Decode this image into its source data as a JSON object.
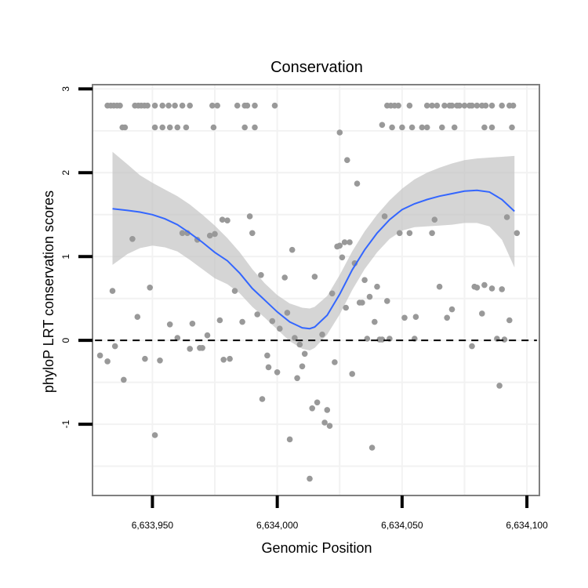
{
  "chart_data": {
    "type": "scatter",
    "title": "Conservation",
    "xlabel": "Genomic Position",
    "ylabel": "phyloP LRT conservation scores",
    "xlim": [
      6633926,
      6634105
    ],
    "ylim": [
      -1.85,
      3.05
    ],
    "x_ticks": [
      6633950,
      6634000,
      6634050,
      6634100
    ],
    "x_tick_labels": [
      "6,633,950",
      "6,634,000",
      "6,634,050",
      "6,634,100"
    ],
    "y_ticks": [
      -1,
      0,
      1,
      2,
      3
    ],
    "y_tick_labels": [
      "-1",
      "0",
      "1",
      "2",
      "3"
    ],
    "reference_line": {
      "y": 0,
      "style": "dashed"
    },
    "points": [
      [
        6633932.0,
        2.8
      ],
      [
        6633933.3,
        2.8
      ],
      [
        6633934.5,
        2.8
      ],
      [
        6633935.8,
        2.8
      ],
      [
        6633937.0,
        2.8
      ],
      [
        6633938.0,
        2.54
      ],
      [
        6633939.0,
        2.54
      ],
      [
        6633943.0,
        2.8
      ],
      [
        6633944.3,
        2.8
      ],
      [
        6633945.5,
        2.8
      ],
      [
        6633946.8,
        2.8
      ],
      [
        6633948.0,
        2.8
      ],
      [
        6633951.0,
        2.8
      ],
      [
        6633954.0,
        2.8
      ],
      [
        6633956.5,
        2.8
      ],
      [
        6633959.0,
        2.8
      ],
      [
        6633962.0,
        2.8
      ],
      [
        6633965.0,
        2.8
      ],
      [
        6633974.0,
        2.8
      ],
      [
        6633976.0,
        2.8
      ],
      [
        6633984.0,
        2.8
      ],
      [
        6633987.0,
        2.8
      ],
      [
        6633988.0,
        2.8
      ],
      [
        6633991.0,
        2.8
      ],
      [
        6633999.0,
        2.8
      ],
      [
        6633951.0,
        2.54
      ],
      [
        6633954.0,
        2.54
      ],
      [
        6633957.0,
        2.54
      ],
      [
        6633960.0,
        2.54
      ],
      [
        6633963.5,
        2.54
      ],
      [
        6633974.5,
        2.54
      ],
      [
        6633987.0,
        2.54
      ],
      [
        6633991.0,
        2.54
      ],
      [
        6634044.0,
        2.8
      ],
      [
        6634045.5,
        2.8
      ],
      [
        6634047.0,
        2.8
      ],
      [
        6634048.5,
        2.8
      ],
      [
        6634053.0,
        2.8
      ],
      [
        6634060.0,
        2.8
      ],
      [
        6634062.0,
        2.8
      ],
      [
        6634064.0,
        2.8
      ],
      [
        6634067.0,
        2.8
      ],
      [
        6634069.0,
        2.8
      ],
      [
        6634070.0,
        2.8
      ],
      [
        6634072.0,
        2.8
      ],
      [
        6634073.0,
        2.8
      ],
      [
        6634075.0,
        2.8
      ],
      [
        6634077.0,
        2.8
      ],
      [
        6634078.0,
        2.8
      ],
      [
        6634080.0,
        2.8
      ],
      [
        6634082.0,
        2.8
      ],
      [
        6634083.5,
        2.8
      ],
      [
        6634086.0,
        2.8
      ],
      [
        6634090.0,
        2.8
      ],
      [
        6634093.0,
        2.8
      ],
      [
        6634094.5,
        2.8
      ],
      [
        6634042.0,
        2.57
      ],
      [
        6634046.0,
        2.54
      ],
      [
        6634050.0,
        2.54
      ],
      [
        6634054.0,
        2.54
      ],
      [
        6634058.0,
        2.54
      ],
      [
        6634060.0,
        2.54
      ],
      [
        6634066.0,
        2.54
      ],
      [
        6634071.0,
        2.54
      ],
      [
        6634083.0,
        2.54
      ],
      [
        6634086.0,
        2.54
      ],
      [
        6634094.0,
        2.54
      ],
      [
        6634025.0,
        2.48
      ],
      [
        6634028.0,
        2.15
      ],
      [
        6634032.0,
        1.87
      ],
      [
        6633934.0,
        0.59
      ],
      [
        6633929.0,
        -0.18
      ],
      [
        6633932.0,
        -0.25
      ],
      [
        6633935.0,
        -0.07
      ],
      [
        6633942.0,
        1.21
      ],
      [
        6633944.0,
        0.28
      ],
      [
        6633947.0,
        -0.22
      ],
      [
        6633938.5,
        -0.47
      ],
      [
        6633949.0,
        0.63
      ],
      [
        6633951.0,
        -1.13
      ],
      [
        6633953.0,
        -0.24
      ],
      [
        6633957.0,
        0.19
      ],
      [
        6633960.0,
        0.03
      ],
      [
        6633962.0,
        1.28
      ],
      [
        6633964.0,
        1.28
      ],
      [
        6633966.0,
        0.2
      ],
      [
        6633965.0,
        -0.1
      ],
      [
        6633968.0,
        1.2
      ],
      [
        6633969.0,
        -0.09
      ],
      [
        6633970.0,
        -0.09
      ],
      [
        6633972.0,
        0.06
      ],
      [
        6633973.0,
        1.25
      ],
      [
        6633975.0,
        1.27
      ],
      [
        6633977.0,
        0.24
      ],
      [
        6633978.0,
        1.44
      ],
      [
        6633980.0,
        1.43
      ],
      [
        6633978.5,
        -0.23
      ],
      [
        6633981.0,
        -0.22
      ],
      [
        6633983.0,
        0.59
      ],
      [
        6633986.0,
        0.22
      ],
      [
        6633989.0,
        1.48
      ],
      [
        6633990.0,
        1.28
      ],
      [
        6633992.0,
        0.31
      ],
      [
        6633993.5,
        0.78
      ],
      [
        6633994.0,
        -0.7
      ],
      [
        6633996.0,
        -0.18
      ],
      [
        6633996.5,
        -0.32
      ],
      [
        6633998.0,
        0.23
      ],
      [
        6634000.0,
        -0.38
      ],
      [
        6634001.0,
        0.14
      ],
      [
        6634003.0,
        0.75
      ],
      [
        6634004.0,
        0.33
      ],
      [
        6634006.0,
        1.08
      ],
      [
        6634007.0,
        0.03
      ],
      [
        6634008.0,
        -0.45
      ],
      [
        6634009.0,
        -0.05
      ],
      [
        6634010.0,
        -0.31
      ],
      [
        6634005.0,
        -1.18
      ],
      [
        6634011.0,
        -0.16
      ],
      [
        6634013.0,
        -1.65
      ],
      [
        6634014.0,
        -0.81
      ],
      [
        6634015.0,
        0.76
      ],
      [
        6634016.0,
        -0.74
      ],
      [
        6634018.0,
        0.07
      ],
      [
        6634019.0,
        -0.98
      ],
      [
        6634020.0,
        -0.83
      ],
      [
        6634021.0,
        -1.02
      ],
      [
        6634022.0,
        0.56
      ],
      [
        6634023.0,
        -0.26
      ],
      [
        6634024.0,
        1.12
      ],
      [
        6634025.0,
        1.13
      ],
      [
        6634026.0,
        0.99
      ],
      [
        6634027.0,
        1.17
      ],
      [
        6634029.0,
        1.17
      ],
      [
        6634027.5,
        0.39
      ],
      [
        6634030.0,
        -0.4
      ],
      [
        6634031.0,
        0.92
      ],
      [
        6634033.0,
        0.45
      ],
      [
        6634034.0,
        0.45
      ],
      [
        6634035.0,
        0.72
      ],
      [
        6634036.0,
        0.02
      ],
      [
        6634037.0,
        0.52
      ],
      [
        6634038.0,
        -1.28
      ],
      [
        6634039.0,
        0.22
      ],
      [
        6634040.0,
        0.64
      ],
      [
        6634041.0,
        0.01
      ],
      [
        6634042.0,
        0.01
      ],
      [
        6634043.0,
        1.48
      ],
      [
        6634044.0,
        0.47
      ],
      [
        6634045.0,
        0.02
      ],
      [
        6634049.0,
        1.28
      ],
      [
        6634051.0,
        0.27
      ],
      [
        6634053.0,
        1.28
      ],
      [
        6634055.0,
        0.02
      ],
      [
        6634055.5,
        0.28
      ],
      [
        6634062.0,
        1.28
      ],
      [
        6634063.0,
        1.44
      ],
      [
        6634065.0,
        0.64
      ],
      [
        6634068.0,
        0.27
      ],
      [
        6634070.0,
        0.37
      ],
      [
        6634078.0,
        -0.07
      ],
      [
        6634079.0,
        0.64
      ],
      [
        6634080.0,
        0.63
      ],
      [
        6634082.0,
        0.32
      ],
      [
        6634083.0,
        0.66
      ],
      [
        6634086.0,
        0.62
      ],
      [
        6634088.0,
        0.02
      ],
      [
        6634089.0,
        -0.54
      ],
      [
        6634090.0,
        0.61
      ],
      [
        6634091.0,
        0.01
      ],
      [
        6634092.0,
        1.47
      ],
      [
        6634093.0,
        0.24
      ],
      [
        6634096.0,
        1.28
      ]
    ],
    "smooth_line": {
      "x": [
        6633934,
        6633940,
        6633945,
        6633950,
        6633955,
        6633960,
        6633965,
        6633970,
        6633975,
        6633980,
        6633985,
        6633990,
        6633995,
        6634000,
        6634005,
        6634010,
        6634013,
        6634015,
        6634020,
        6634025,
        6634030,
        6634035,
        6634040,
        6634045,
        6634050,
        6634055,
        6634060,
        6634065,
        6634070,
        6634075,
        6634080,
        6634085,
        6634090,
        6634095
      ],
      "y": [
        1.57,
        1.55,
        1.53,
        1.5,
        1.45,
        1.38,
        1.28,
        1.17,
        1.05,
        0.95,
        0.8,
        0.62,
        0.48,
        0.34,
        0.22,
        0.15,
        0.14,
        0.16,
        0.3,
        0.55,
        0.84,
        1.08,
        1.28,
        1.44,
        1.56,
        1.63,
        1.68,
        1.72,
        1.75,
        1.78,
        1.79,
        1.77,
        1.68,
        1.54
      ],
      "ci_upper": [
        2.25,
        2.1,
        1.97,
        1.88,
        1.8,
        1.72,
        1.62,
        1.5,
        1.37,
        1.22,
        1.05,
        0.85,
        0.68,
        0.54,
        0.44,
        0.39,
        0.38,
        0.4,
        0.53,
        0.78,
        1.06,
        1.3,
        1.5,
        1.67,
        1.81,
        1.92,
        2.0,
        2.06,
        2.11,
        2.15,
        2.17,
        2.18,
        2.19,
        2.2
      ],
      "ci_lower": [
        0.9,
        1.03,
        1.1,
        1.13,
        1.11,
        1.06,
        0.96,
        0.85,
        0.74,
        0.67,
        0.56,
        0.4,
        0.27,
        0.13,
        -0.01,
        -0.1,
        -0.12,
        -0.09,
        0.07,
        0.31,
        0.6,
        0.85,
        1.05,
        1.21,
        1.31,
        1.35,
        1.36,
        1.37,
        1.38,
        1.4,
        1.4,
        1.36,
        1.2,
        0.87
      ]
    },
    "colors": {
      "points": "#999999",
      "smooth_line": "#3366ff",
      "ci_band": "#bfbfbf",
      "grid": "#f2f2f2",
      "panel_border": "#7f7f7f"
    }
  }
}
